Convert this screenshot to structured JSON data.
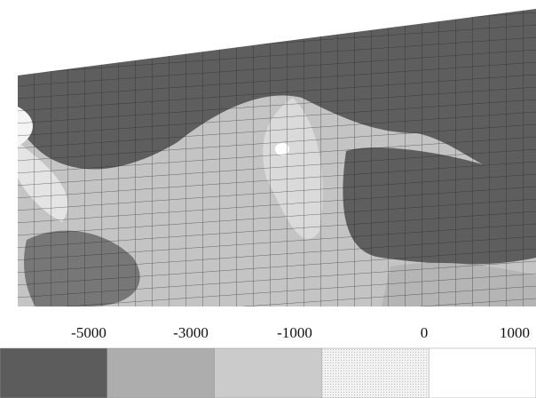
{
  "legend": {
    "ticks": [
      -5000,
      -3000,
      -1000,
      0,
      1000
    ],
    "colors": [
      "#5c5c5c",
      "#adadad",
      "#cbcbcb",
      "#ececec",
      "#ffffff"
    ]
  }
}
